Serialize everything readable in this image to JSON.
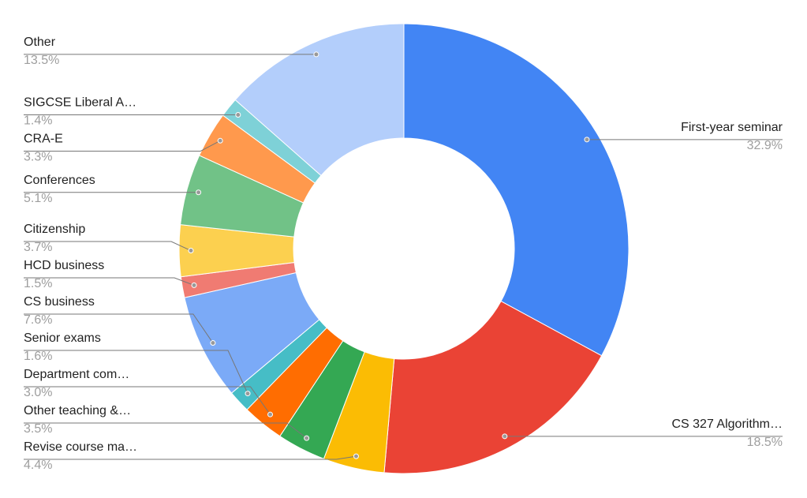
{
  "chart_data": {
    "type": "pie",
    "donut": true,
    "categories": [
      "First-year seminar",
      "CS 327 Algorithm…",
      "Revise course ma…",
      "Other teaching &…",
      "Department com…",
      "Senior exams",
      "CS business",
      "HCD business",
      "Citizenship",
      "Conferences",
      "CRA-E",
      "SIGCSE Liberal A…",
      "Other"
    ],
    "values": [
      32.9,
      18.5,
      4.4,
      3.5,
      3.0,
      1.6,
      7.6,
      1.5,
      3.7,
      5.1,
      3.3,
      1.4,
      13.5
    ],
    "value_labels": [
      "32.9%",
      "18.5%",
      "4.4%",
      "3.5%",
      "3.0%",
      "1.6%",
      "7.6%",
      "1.5%",
      "3.7%",
      "5.1%",
      "3.3%",
      "1.4%",
      "13.5%"
    ],
    "colors": [
      "#4285f4",
      "#ea4335",
      "#fbbc04",
      "#34a853",
      "#ff6d01",
      "#46bdc6",
      "#7baaf7",
      "#f07b72",
      "#fcd04f",
      "#71c287",
      "#ff994d",
      "#7ed1d7",
      "#b3cefb"
    ]
  }
}
